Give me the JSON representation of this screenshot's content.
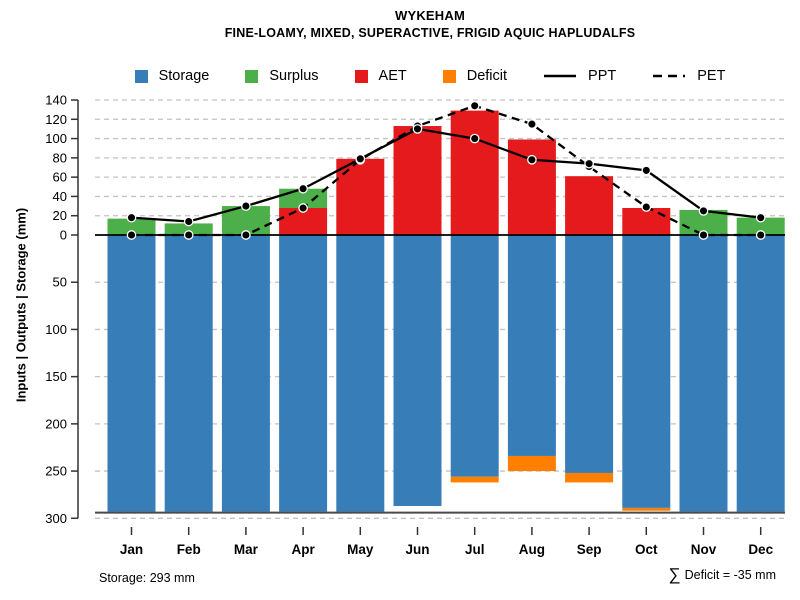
{
  "title": "WYKEHAM",
  "subtitle": "FINE-LOAMY, MIXED, SUPERACTIVE, FRIGID AQUIC HAPLUDALFS",
  "colors": {
    "storage": "#377EB8",
    "surplus": "#4DAF4A",
    "aet": "#E41A1C",
    "deficit": "#FF7F00",
    "line": "#000000",
    "grid": "#C3C3C3",
    "axis": "#333333"
  },
  "legend": {
    "items": [
      {
        "label": "Storage",
        "kind": "swatch",
        "color_key": "storage"
      },
      {
        "label": "Surplus",
        "kind": "swatch",
        "color_key": "surplus"
      },
      {
        "label": "AET",
        "kind": "swatch",
        "color_key": "aet"
      },
      {
        "label": "Deficit",
        "kind": "swatch",
        "color_key": "deficit"
      },
      {
        "label": "PPT",
        "kind": "line-solid",
        "color_key": "line"
      },
      {
        "label": "PET",
        "kind": "line-dashed",
        "color_key": "line"
      }
    ]
  },
  "chart_data": {
    "type": "bar",
    "subtype": "mirrored water-balance chart: stacked bars up (AET+Surplus), bars down (Storage+Deficit), overlaid PPT/PET lines",
    "categories": [
      "Jan",
      "Feb",
      "Mar",
      "Apr",
      "May",
      "Jun",
      "Jul",
      "Aug",
      "Sep",
      "Oct",
      "Nov",
      "Dec"
    ],
    "series": [
      {
        "name": "Storage",
        "type": "bar",
        "direction": "down",
        "color_key": "storage",
        "values": [
          293,
          293,
          293,
          293,
          293,
          287,
          256,
          234,
          252,
          289,
          293,
          293
        ]
      },
      {
        "name": "Deficit",
        "type": "bar",
        "direction": "down",
        "stack_on": "Storage",
        "color_key": "deficit",
        "values": [
          0,
          0,
          0,
          0,
          0,
          0,
          6,
          16,
          10,
          3,
          0,
          0
        ]
      },
      {
        "name": "AET",
        "type": "bar",
        "direction": "up",
        "color_key": "aet",
        "values": [
          0,
          0,
          0,
          28,
          79,
          113,
          129,
          99,
          61,
          28,
          0,
          0
        ]
      },
      {
        "name": "Surplus",
        "type": "bar",
        "direction": "up",
        "stack_on": "AET",
        "color_key": "surplus",
        "values": [
          17,
          12,
          30,
          20,
          0,
          0,
          0,
          0,
          0,
          0,
          26,
          18
        ]
      },
      {
        "name": "PPT",
        "type": "line",
        "style": "solid",
        "color_key": "line",
        "values": [
          18,
          14,
          30,
          48,
          79,
          110,
          100,
          78,
          74,
          67,
          25,
          18
        ]
      },
      {
        "name": "PET",
        "type": "line",
        "style": "dashed",
        "color_key": "line",
        "values": [
          0,
          0,
          0,
          28,
          78,
          113,
          134,
          115,
          71,
          29,
          0,
          0
        ]
      }
    ],
    "y_top": {
      "min": 0,
      "max": 140,
      "step": 20
    },
    "y_bottom": {
      "min": 0,
      "max": 300,
      "step": 50,
      "note": "increases downward"
    },
    "ylabel": "Inputs | Outputs | Storage  (mm)",
    "grid": "dashed horizontal gridlines at every tick",
    "legend_position": "top"
  },
  "annotations": {
    "storage_note": "Storage: 293 mm",
    "deficit_sigma": "∑",
    "deficit_note": "Deficit = -35 mm"
  }
}
